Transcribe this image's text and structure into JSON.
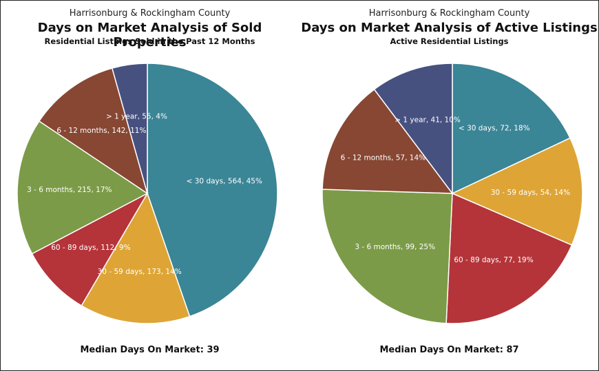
{
  "charts": [
    {
      "header_small": "Harrisonburg & Rockingham County",
      "title": "Days on Market Analysis of Sold Properties",
      "subtitle": "Residential Listings Sold in the Past 12 Months",
      "median_label": "Median Days On Market:",
      "median_value": "39"
    },
    {
      "header_small": "Harrisonburg & Rockingham County",
      "title": "Days on Market Analysis of Active Listings",
      "subtitle": "Active Residential Listings",
      "median_label": "Median Days On Market:",
      "median_value": "87"
    }
  ],
  "chart_data": [
    {
      "type": "pie",
      "title": "Days on Market Analysis of Sold Properties",
      "slices": [
        {
          "label": "< 30 days",
          "value": 564,
          "percent": 45,
          "text": "< 30 days, 564, 45%",
          "color": "#3a8596"
        },
        {
          "label": "30 - 59 days",
          "value": 173,
          "percent": 14,
          "text": "30 - 59 days, 173, 14%",
          "color": "#dea536"
        },
        {
          "label": "60 - 89 days",
          "value": 112,
          "percent": 9,
          "text": "60 - 89 days, 112, 9%",
          "color": "#b4343a"
        },
        {
          "label": "3 - 6 months",
          "value": 215,
          "percent": 17,
          "text": "3 - 6 months, 215, 17%",
          "color": "#7c9b48"
        },
        {
          "label": "6 - 12 months",
          "value": 142,
          "percent": 11,
          "text": "6 - 12 months, 142, 11%",
          "color": "#874733"
        },
        {
          "label": "> 1 year",
          "value": 55,
          "percent": 4,
          "text": "> 1 year, 55, 4%",
          "color": "#475180"
        }
      ]
    },
    {
      "type": "pie",
      "title": "Days on Market Analysis of Active Listings",
      "slices": [
        {
          "label": "< 30 days",
          "value": 72,
          "percent": 18,
          "text": "< 30 days, 72, 18%",
          "color": "#3a8596"
        },
        {
          "label": "30 - 59 days",
          "value": 54,
          "percent": 14,
          "text": "30 - 59 days, 54, 14%",
          "color": "#dea536"
        },
        {
          "label": "60 - 89 days",
          "value": 77,
          "percent": 19,
          "text": "60 - 89 days, 77, 19%",
          "color": "#b4343a"
        },
        {
          "label": "3 - 6 months",
          "value": 99,
          "percent": 25,
          "text": "3 - 6 months, 99, 25%",
          "color": "#7c9b48"
        },
        {
          "label": "6 - 12 months",
          "value": 57,
          "percent": 14,
          "text": "6 - 12 months, 57, 14%",
          "color": "#874733"
        },
        {
          "label": "> 1 year",
          "value": 41,
          "percent": 10,
          "text": "> 1 year, 41, 10%",
          "color": "#475180"
        }
      ]
    }
  ]
}
